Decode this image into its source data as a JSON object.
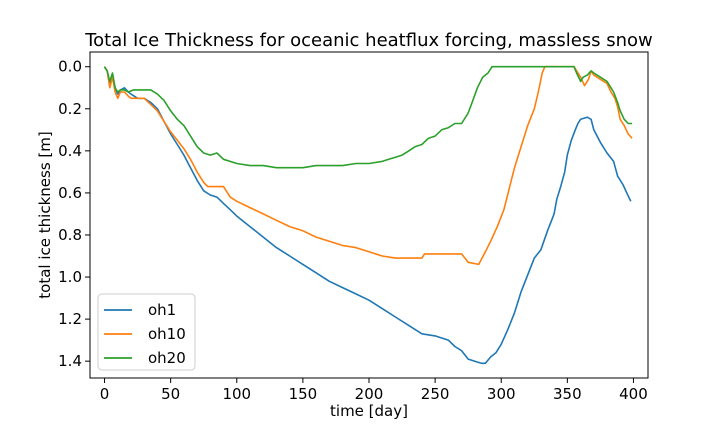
{
  "chart_data": {
    "type": "line",
    "title": "Total Ice Thickness for oceanic heatflux forcing, massless snow",
    "xlabel": "time [day]",
    "ylabel": "total ice thickness [m]",
    "xlim": [
      -11,
      411
    ],
    "ylim": [
      1.48,
      -0.07
    ],
    "y_inverted": true,
    "xticks": [
      0,
      50,
      100,
      150,
      200,
      250,
      300,
      350,
      400
    ],
    "xtick_labels": [
      "0",
      "50",
      "100",
      "150",
      "200",
      "250",
      "300",
      "350",
      "400"
    ],
    "yticks": [
      0.0,
      0.2,
      0.4,
      0.6,
      0.8,
      1.0,
      1.2,
      1.4
    ],
    "ytick_labels": [
      "0.0",
      "0.2",
      "0.4",
      "0.6",
      "0.8",
      "1.0",
      "1.2",
      "1.4"
    ],
    "grid": false,
    "legend_position": "lower-left",
    "series": [
      {
        "name": "oh1",
        "color": "#1f77b4",
        "points": [
          [
            0,
            0.0
          ],
          [
            2,
            0.02
          ],
          [
            4,
            0.09
          ],
          [
            6,
            0.04
          ],
          [
            8,
            0.1
          ],
          [
            10,
            0.13
          ],
          [
            12,
            0.11
          ],
          [
            15,
            0.1
          ],
          [
            18,
            0.12
          ],
          [
            20,
            0.13
          ],
          [
            25,
            0.15
          ],
          [
            30,
            0.15
          ],
          [
            35,
            0.17
          ],
          [
            40,
            0.2
          ],
          [
            45,
            0.26
          ],
          [
            50,
            0.32
          ],
          [
            55,
            0.37
          ],
          [
            60,
            0.42
          ],
          [
            65,
            0.48
          ],
          [
            70,
            0.54
          ],
          [
            75,
            0.59
          ],
          [
            80,
            0.61
          ],
          [
            85,
            0.62
          ],
          [
            90,
            0.65
          ],
          [
            95,
            0.68
          ],
          [
            100,
            0.71
          ],
          [
            110,
            0.76
          ],
          [
            120,
            0.81
          ],
          [
            130,
            0.86
          ],
          [
            140,
            0.9
          ],
          [
            150,
            0.94
          ],
          [
            160,
            0.98
          ],
          [
            170,
            1.02
          ],
          [
            180,
            1.05
          ],
          [
            190,
            1.08
          ],
          [
            200,
            1.11
          ],
          [
            210,
            1.15
          ],
          [
            220,
            1.19
          ],
          [
            230,
            1.23
          ],
          [
            240,
            1.27
          ],
          [
            250,
            1.28
          ],
          [
            260,
            1.3
          ],
          [
            265,
            1.33
          ],
          [
            270,
            1.35
          ],
          [
            275,
            1.39
          ],
          [
            280,
            1.4
          ],
          [
            285,
            1.41
          ],
          [
            288,
            1.41
          ],
          [
            292,
            1.38
          ],
          [
            296,
            1.36
          ],
          [
            300,
            1.32
          ],
          [
            305,
            1.25
          ],
          [
            310,
            1.17
          ],
          [
            315,
            1.07
          ],
          [
            320,
            0.99
          ],
          [
            325,
            0.91
          ],
          [
            330,
            0.87
          ],
          [
            335,
            0.78
          ],
          [
            340,
            0.7
          ],
          [
            342,
            0.63
          ],
          [
            345,
            0.57
          ],
          [
            348,
            0.5
          ],
          [
            350,
            0.42
          ],
          [
            353,
            0.35
          ],
          [
            356,
            0.3
          ],
          [
            358,
            0.27
          ],
          [
            360,
            0.25
          ],
          [
            365,
            0.24
          ],
          [
            368,
            0.25
          ],
          [
            370,
            0.3
          ],
          [
            375,
            0.36
          ],
          [
            380,
            0.41
          ],
          [
            385,
            0.45
          ],
          [
            388,
            0.52
          ],
          [
            392,
            0.56
          ],
          [
            395,
            0.6
          ],
          [
            398,
            0.64
          ]
        ]
      },
      {
        "name": "oh10",
        "color": "#ff7f0e",
        "points": [
          [
            0,
            0.0
          ],
          [
            2,
            0.02
          ],
          [
            4,
            0.1
          ],
          [
            6,
            0.05
          ],
          [
            8,
            0.12
          ],
          [
            10,
            0.15
          ],
          [
            12,
            0.12
          ],
          [
            15,
            0.12
          ],
          [
            18,
            0.14
          ],
          [
            20,
            0.15
          ],
          [
            25,
            0.15
          ],
          [
            30,
            0.15
          ],
          [
            35,
            0.18
          ],
          [
            40,
            0.21
          ],
          [
            45,
            0.26
          ],
          [
            50,
            0.31
          ],
          [
            55,
            0.35
          ],
          [
            60,
            0.39
          ],
          [
            65,
            0.44
          ],
          [
            70,
            0.5
          ],
          [
            75,
            0.55
          ],
          [
            78,
            0.57
          ],
          [
            90,
            0.57
          ],
          [
            95,
            0.62
          ],
          [
            100,
            0.64
          ],
          [
            110,
            0.67
          ],
          [
            120,
            0.7
          ],
          [
            130,
            0.73
          ],
          [
            140,
            0.76
          ],
          [
            150,
            0.78
          ],
          [
            160,
            0.81
          ],
          [
            170,
            0.83
          ],
          [
            180,
            0.85
          ],
          [
            190,
            0.86
          ],
          [
            200,
            0.88
          ],
          [
            210,
            0.9
          ],
          [
            220,
            0.91
          ],
          [
            230,
            0.91
          ],
          [
            240,
            0.91
          ],
          [
            242,
            0.89
          ],
          [
            270,
            0.89
          ],
          [
            275,
            0.93
          ],
          [
            283,
            0.94
          ],
          [
            288,
            0.88
          ],
          [
            292,
            0.83
          ],
          [
            297,
            0.76
          ],
          [
            302,
            0.68
          ],
          [
            306,
            0.58
          ],
          [
            310,
            0.48
          ],
          [
            315,
            0.38
          ],
          [
            320,
            0.28
          ],
          [
            325,
            0.2
          ],
          [
            328,
            0.12
          ],
          [
            331,
            0.03
          ],
          [
            333,
            0.0
          ],
          [
            355,
            0.0
          ],
          [
            360,
            0.05
          ],
          [
            363,
            0.09
          ],
          [
            366,
            0.06
          ],
          [
            368,
            0.02
          ],
          [
            370,
            0.04
          ],
          [
            375,
            0.06
          ],
          [
            380,
            0.08
          ],
          [
            383,
            0.12
          ],
          [
            386,
            0.15
          ],
          [
            388,
            0.19
          ],
          [
            390,
            0.25
          ],
          [
            393,
            0.28
          ],
          [
            396,
            0.32
          ],
          [
            399,
            0.34
          ]
        ]
      },
      {
        "name": "oh20",
        "color": "#2ca02c",
        "points": [
          [
            0,
            0.0
          ],
          [
            2,
            0.02
          ],
          [
            4,
            0.07
          ],
          [
            6,
            0.03
          ],
          [
            8,
            0.1
          ],
          [
            10,
            0.12
          ],
          [
            12,
            0.11
          ],
          [
            15,
            0.11
          ],
          [
            18,
            0.12
          ],
          [
            22,
            0.11
          ],
          [
            30,
            0.11
          ],
          [
            35,
            0.11
          ],
          [
            40,
            0.13
          ],
          [
            45,
            0.16
          ],
          [
            50,
            0.21
          ],
          [
            55,
            0.25
          ],
          [
            60,
            0.28
          ],
          [
            65,
            0.33
          ],
          [
            70,
            0.38
          ],
          [
            75,
            0.41
          ],
          [
            80,
            0.42
          ],
          [
            85,
            0.41
          ],
          [
            90,
            0.44
          ],
          [
            100,
            0.46
          ],
          [
            110,
            0.47
          ],
          [
            120,
            0.47
          ],
          [
            130,
            0.48
          ],
          [
            140,
            0.48
          ],
          [
            150,
            0.48
          ],
          [
            160,
            0.47
          ],
          [
            170,
            0.47
          ],
          [
            180,
            0.47
          ],
          [
            190,
            0.46
          ],
          [
            200,
            0.46
          ],
          [
            210,
            0.45
          ],
          [
            215,
            0.44
          ],
          [
            220,
            0.43
          ],
          [
            225,
            0.42
          ],
          [
            230,
            0.4
          ],
          [
            235,
            0.38
          ],
          [
            240,
            0.37
          ],
          [
            245,
            0.34
          ],
          [
            250,
            0.33
          ],
          [
            255,
            0.3
          ],
          [
            260,
            0.29
          ],
          [
            265,
            0.27
          ],
          [
            270,
            0.27
          ],
          [
            275,
            0.22
          ],
          [
            278,
            0.17
          ],
          [
            282,
            0.1
          ],
          [
            286,
            0.05
          ],
          [
            290,
            0.03
          ],
          [
            293,
            0.0
          ],
          [
            355,
            0.0
          ],
          [
            357,
            0.03
          ],
          [
            360,
            0.07
          ],
          [
            362,
            0.05
          ],
          [
            365,
            0.04
          ],
          [
            368,
            0.02
          ],
          [
            370,
            0.03
          ],
          [
            375,
            0.05
          ],
          [
            380,
            0.07
          ],
          [
            385,
            0.12
          ],
          [
            388,
            0.17
          ],
          [
            390,
            0.21
          ],
          [
            393,
            0.25
          ],
          [
            396,
            0.27
          ],
          [
            399,
            0.27
          ]
        ]
      }
    ]
  }
}
